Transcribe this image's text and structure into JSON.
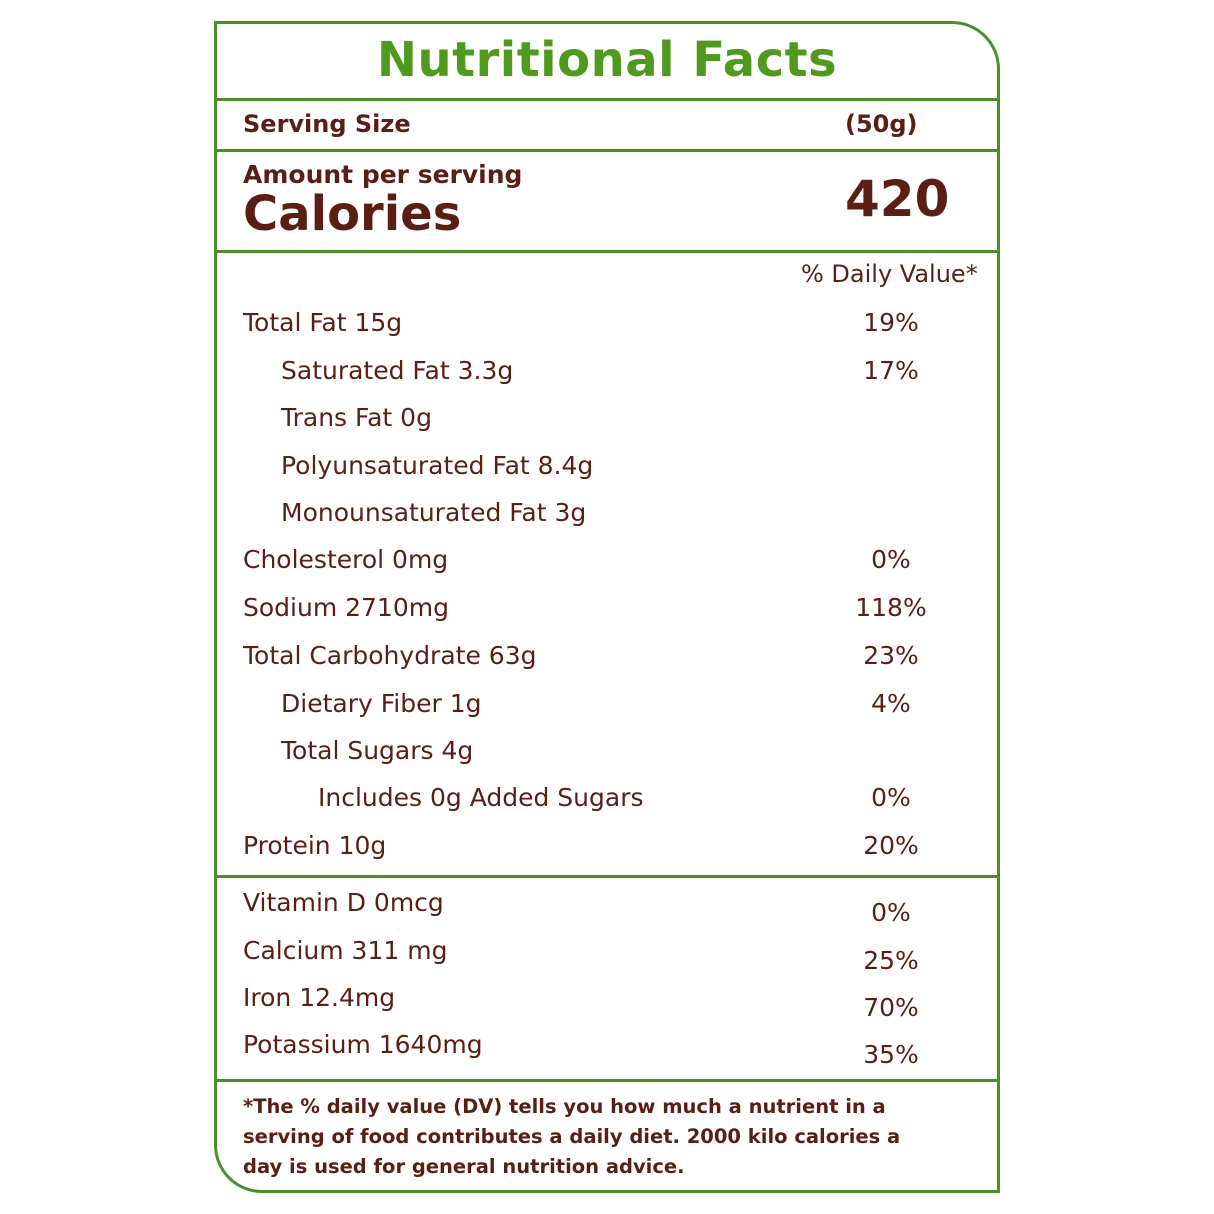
{
  "title": "Nutritional Facts",
  "serving": {
    "label": "Serving Size",
    "value": "(50g)"
  },
  "calories": {
    "amount_label": "Amount per serving",
    "label": "Calories",
    "value": "420"
  },
  "daily_value_header": "% Daily Value*",
  "nutrients": [
    {
      "name": "Total Fat 15g",
      "dv": "19%",
      "indent": 0
    },
    {
      "name": "Saturated Fat 3.3g",
      "dv": "17%",
      "indent": 1
    },
    {
      "name": "Trans Fat 0g",
      "dv": "",
      "indent": 1
    },
    {
      "name": "Polyunsaturated Fat 8.4g",
      "dv": "",
      "indent": 1
    },
    {
      "name": "Monounsaturated Fat 3g",
      "dv": "",
      "indent": 1
    },
    {
      "name": "Cholesterol 0mg",
      "dv": "0%",
      "indent": 0
    },
    {
      "name": "Sodium 2710mg",
      "dv": "118%",
      "indent": 0
    },
    {
      "name": "Total Carbohydrate 63g",
      "dv": "23%",
      "indent": 0
    },
    {
      "name": "Dietary Fiber 1g",
      "dv": "4%",
      "indent": 1
    },
    {
      "name": "Total Sugars 4g",
      "dv": "",
      "indent": 1
    },
    {
      "name": "Includes 0g Added Sugars",
      "dv": "0%",
      "indent": 2
    },
    {
      "name": "Protein 10g",
      "dv": "20%",
      "indent": 0
    }
  ],
  "vitamins": [
    {
      "name": "Vitamin D 0mcg",
      "dv": "0%"
    },
    {
      "name": "Calcium 311 mg",
      "dv": "25%"
    },
    {
      "name": "Iron 12.4mg",
      "dv": "70%"
    },
    {
      "name": "Potassium 1640mg",
      "dv": "35%"
    }
  ],
  "footnote": "*The % daily value (DV) tells you how much a nutrient in a serving of food contributes a daily diet. 2000 kilo calories a day is used for general nutrition advice.",
  "colors": {
    "border": "#4c8f2a",
    "title": "#4f9a1d",
    "text": "#5a1e14"
  }
}
